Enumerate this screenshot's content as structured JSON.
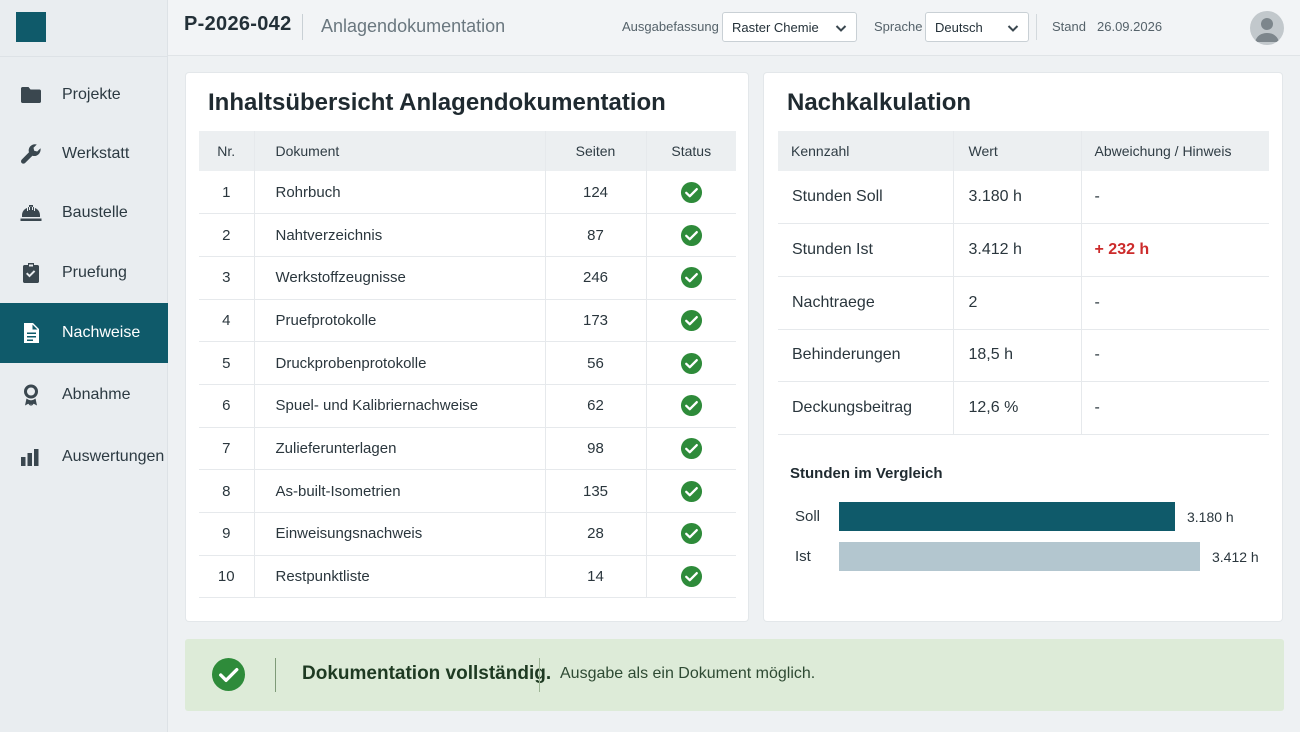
{
  "colors": {
    "brand": "#0f5a6a",
    "success": "#2e8b3a",
    "warning_red": "#cc2b2b",
    "ist_bar": "#b3c6cf"
  },
  "sidebar": {
    "items": [
      {
        "label": "Projekte",
        "icon": "folder-icon"
      },
      {
        "label": "Werkstatt",
        "icon": "wrench-icon"
      },
      {
        "label": "Baustelle",
        "icon": "hardhat-icon"
      },
      {
        "label": "Pruefung",
        "icon": "clipboard-check-icon"
      },
      {
        "label": "Nachweise",
        "icon": "document-icon",
        "active": true
      },
      {
        "label": "Abnahme",
        "icon": "award-icon"
      },
      {
        "label": "Auswertungen",
        "icon": "bar-chart-icon"
      }
    ]
  },
  "header": {
    "project_id": "P-2026-042",
    "title": "Anlagendokumentation",
    "edition_label": "Ausgabefassung",
    "edition_value": "Raster Chemie",
    "language_label": "Sprache",
    "language_value": "Deutsch",
    "date_label": "Stand",
    "date_value": "26.09.2026"
  },
  "contents": {
    "title": "Inhaltsübersicht Anlagendokumentation",
    "columns": [
      "Nr.",
      "Dokument",
      "Seiten",
      "Status"
    ],
    "rows": [
      {
        "nr": "1",
        "doc": "Rohrbuch",
        "pages": "124"
      },
      {
        "nr": "2",
        "doc": "Nahtverzeichnis",
        "pages": "87"
      },
      {
        "nr": "3",
        "doc": "Werkstoffzeugnisse",
        "pages": "246"
      },
      {
        "nr": "4",
        "doc": "Pruefprotokolle",
        "pages": "173"
      },
      {
        "nr": "5",
        "doc": "Druckprobenprotokolle",
        "pages": "56"
      },
      {
        "nr": "6",
        "doc": "Spuel- und Kalibriernachweise",
        "pages": "62"
      },
      {
        "nr": "7",
        "doc": "Zulieferunterlagen",
        "pages": "98"
      },
      {
        "nr": "8",
        "doc": "As-built-Isometrien",
        "pages": "135"
      },
      {
        "nr": "9",
        "doc": "Einweisungsnachweis",
        "pages": "28"
      },
      {
        "nr": "10",
        "doc": "Restpunktliste",
        "pages": "14"
      }
    ]
  },
  "calc": {
    "title": "Nachkalkulation",
    "columns": [
      "Kennzahl",
      "Wert",
      "Abweichung / Hinweis"
    ],
    "rows": [
      {
        "name": "Stunden Soll",
        "value": "3.180 h",
        "note": "-"
      },
      {
        "name": "Stunden Ist",
        "value": "3.412 h",
        "note": "+ 232 h"
      },
      {
        "name": "Nachtraege",
        "value": "2",
        "note": "-"
      },
      {
        "name": "Behinderungen",
        "value": "18,5 h",
        "note": "-"
      },
      {
        "name": "Deckungsbeitrag",
        "value": "12,6 %",
        "note": "-"
      }
    ]
  },
  "chart_data": {
    "type": "bar",
    "title": "Stunden im Vergleich",
    "categories": [
      "Soll",
      "Ist"
    ],
    "values": [
      3180,
      3412
    ],
    "value_labels": [
      "3.180 h",
      "3.412 h"
    ],
    "colors": [
      "#0f5a6a",
      "#b3c6cf"
    ]
  },
  "banner": {
    "title": "Dokumentation vollständig.",
    "text": "Ausgabe als ein Dokument möglich."
  }
}
